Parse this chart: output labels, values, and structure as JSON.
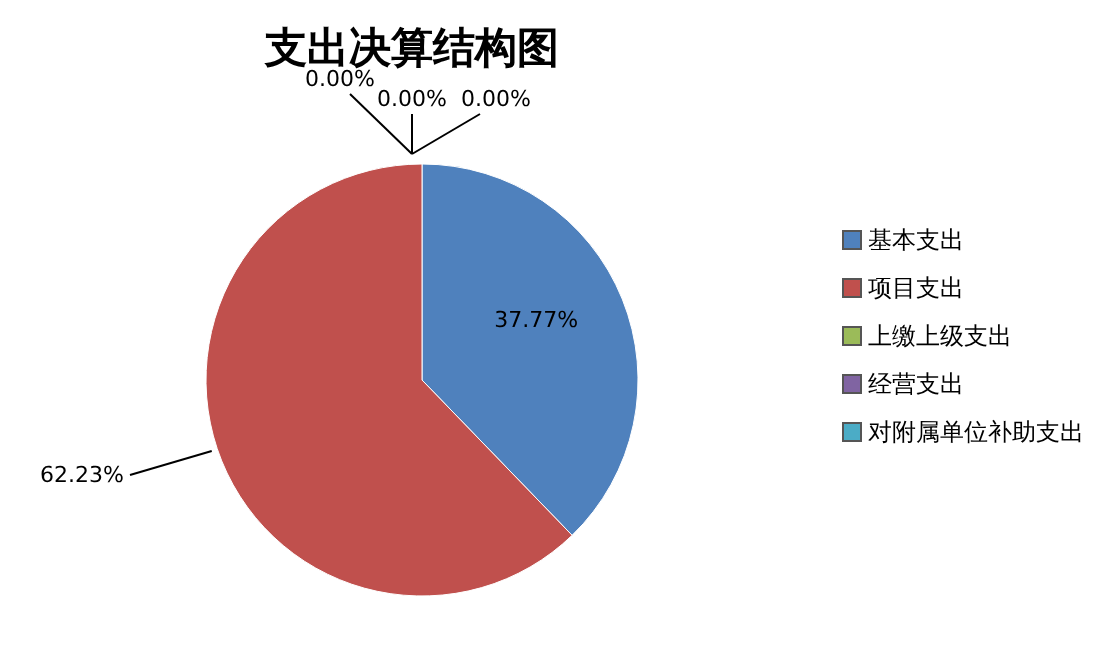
{
  "chart_data": {
    "type": "pie",
    "title": "支出决算结构图",
    "categories": [
      "基本支出",
      "项目支出",
      "上缴上级支出",
      "经营支出",
      "对附属单位补助支出"
    ],
    "values": [
      37.77,
      62.23,
      0,
      0,
      0
    ],
    "colors": [
      "#4f81bd",
      "#c0504d",
      "#9bbb59",
      "#8064a2",
      "#4bacc6"
    ],
    "value_labels": [
      "37.77%",
      "62.23%",
      "0.00%",
      "0.00%",
      "0.00%"
    ],
    "legend": "right"
  }
}
